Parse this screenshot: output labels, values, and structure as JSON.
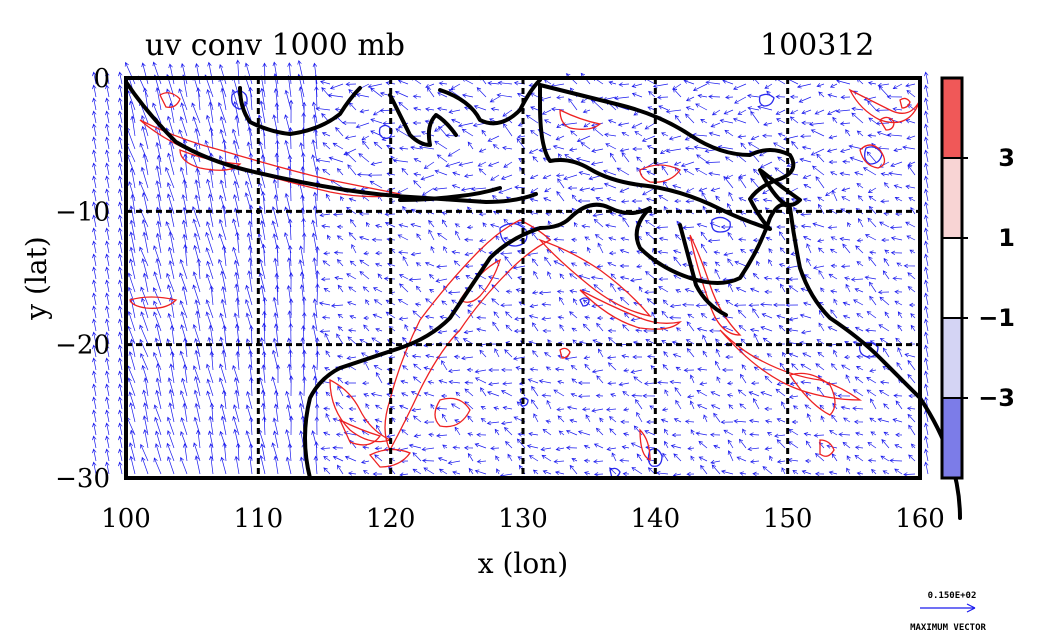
{
  "title": "uv conv 1000 mb",
  "date_label": "100312",
  "x_axis": {
    "label": "x (lon)",
    "ticks": [
      "100",
      "110",
      "120",
      "130",
      "140",
      "150",
      "160"
    ],
    "range": [
      100,
      160
    ]
  },
  "y_axis": {
    "label": "y (lat)",
    "ticks": [
      "0",
      "−10",
      "−20",
      "−30"
    ],
    "range": [
      -30,
      0
    ]
  },
  "colorbar": {
    "labels": [
      "3",
      "1",
      "−1",
      "−3"
    ],
    "colors": [
      "#f05858",
      "#f8d4d4",
      "#ffffff",
      "#d4d4f4",
      "#7c7ce8"
    ]
  },
  "contour_colors": {
    "positive": "#ee2222",
    "negative": "#2a2aee",
    "coast": "#000000",
    "vectors": "#1a1aee"
  },
  "vector_key": {
    "magnitude": "0.150E+02",
    "caption": "MAXIMUM VECTOR"
  }
}
